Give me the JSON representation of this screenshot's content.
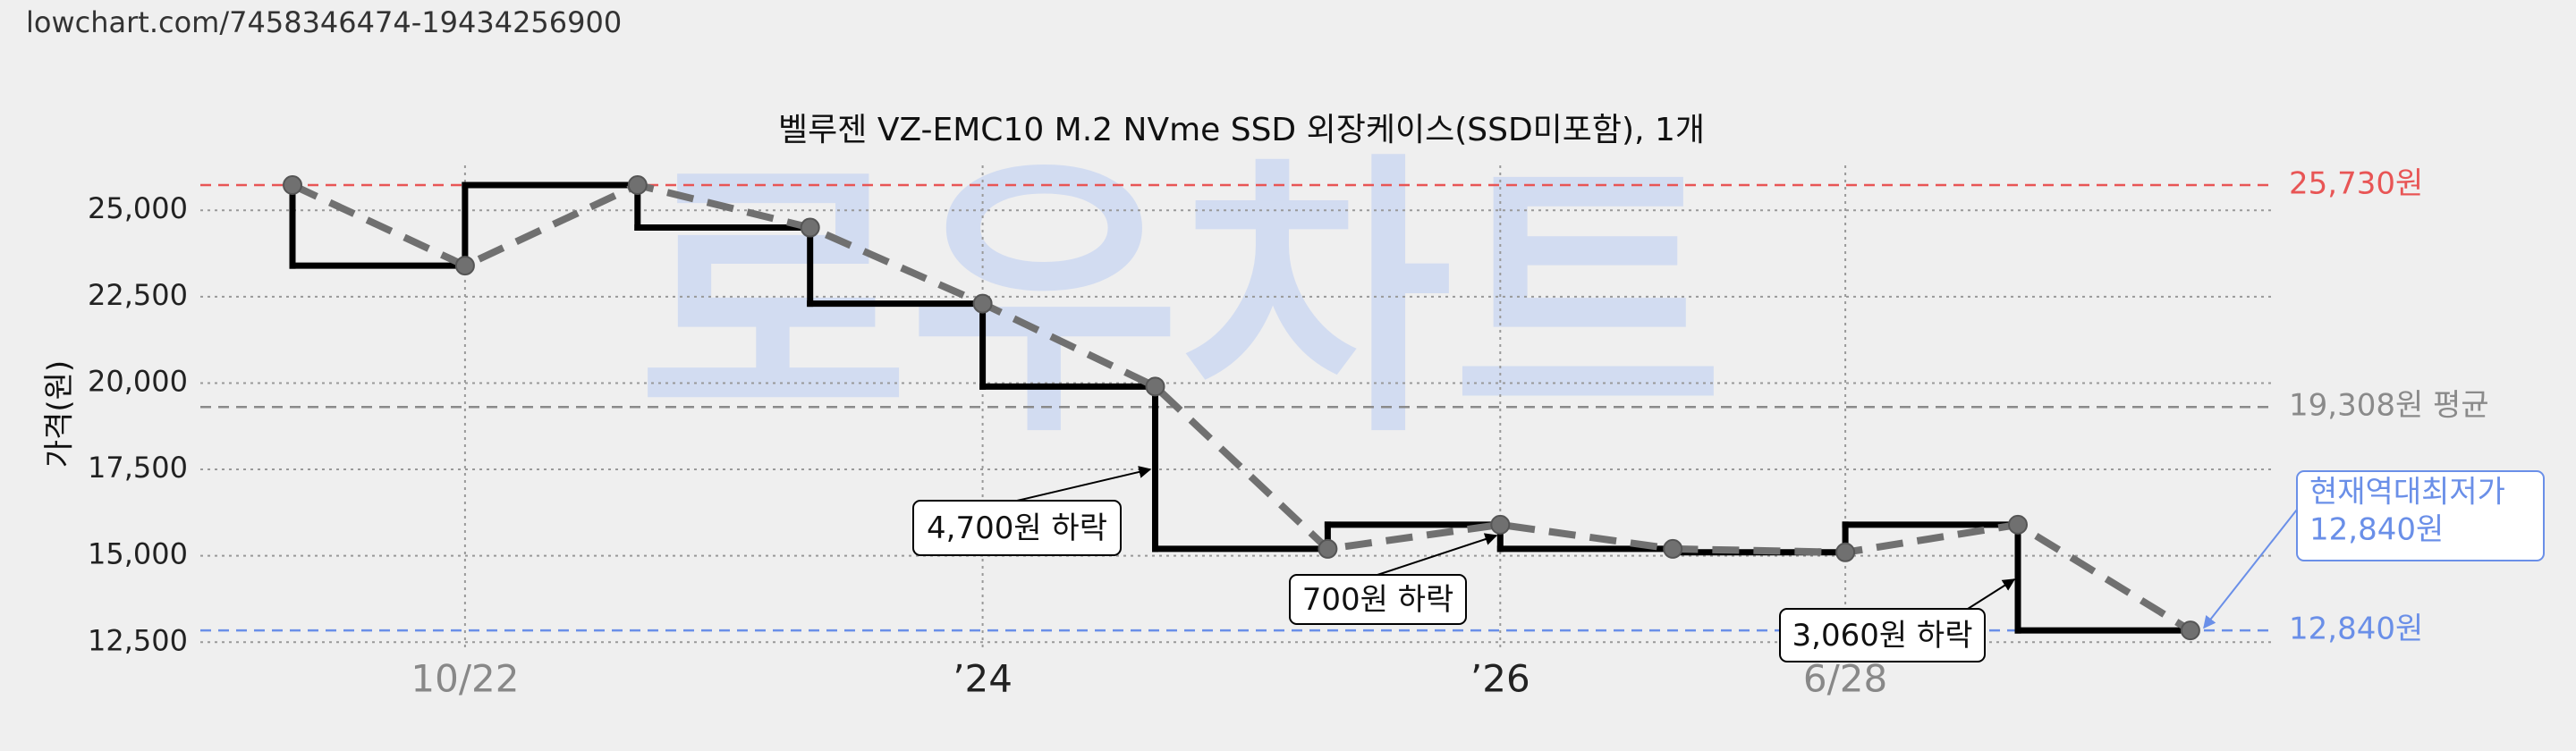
{
  "chart_data": {
    "type": "line",
    "header": "lowchart.com/7458346474-19434256900",
    "title": "벨루젠 VZ-EMC10 M.2 NVme SSD 외장케이스(SSD미포함), 1개",
    "y_label": "가격(원)",
    "watermark": "로우차트",
    "categories": [
      null,
      "10/22",
      null,
      null,
      "’24",
      null,
      null,
      "’26",
      null,
      "6/28",
      null,
      null
    ],
    "values": [
      25730,
      23400,
      25730,
      24500,
      22300,
      19900,
      15200,
      15900,
      15200,
      15100,
      15900,
      12840
    ],
    "step_color": "#000000",
    "line_color": "#707070",
    "ylim": [
      12300,
      26300
    ],
    "yticks": [
      {
        "value": 12500,
        "label": "12,500"
      },
      {
        "value": 15000,
        "label": "15,000"
      },
      {
        "value": 17500,
        "label": "17,500"
      },
      {
        "value": 20000,
        "label": "20,000"
      },
      {
        "value": 22500,
        "label": "22,500"
      },
      {
        "value": 25000,
        "label": "25,000"
      }
    ],
    "grid": true,
    "reference_lines": [
      {
        "value": 25730,
        "label": "25,730원",
        "color": "#e85555"
      },
      {
        "value": 19308,
        "label": "19,308원 평균",
        "color": "#8a8a8a"
      },
      {
        "value": 12840,
        "label": "12,840원",
        "color": "#6a8fe8"
      }
    ],
    "annotations": [
      {
        "text": "4,700원 하락"
      },
      {
        "text": "700원 하락"
      },
      {
        "text": "3,060원 하락"
      }
    ],
    "callout": {
      "lines": [
        "현재역대최저가",
        "12,840원"
      ],
      "color": "#6a8fe8"
    }
  }
}
